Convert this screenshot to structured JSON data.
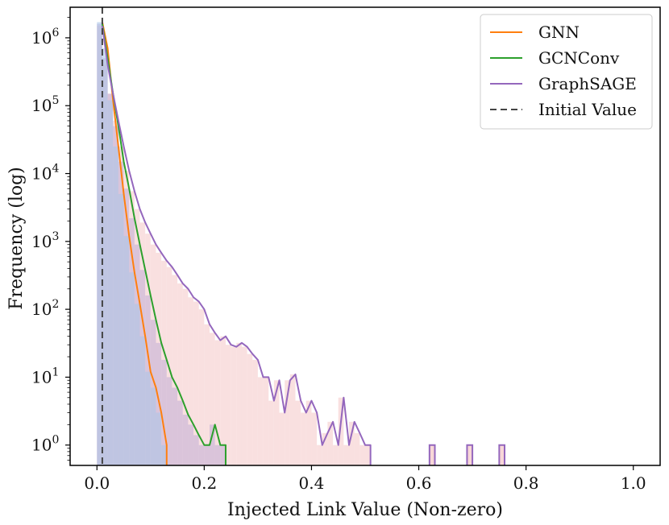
{
  "chart_data": {
    "type": "line",
    "title": "",
    "xlabel": "Injected Link Value (Non-zero)",
    "ylabel": "Frequency (log)",
    "xlim": [
      -0.05,
      1.05
    ],
    "ylim_log10": [
      -0.3,
      6.45
    ],
    "y_scale": "log",
    "x_ticks": [
      0.0,
      0.2,
      0.4,
      0.6,
      0.8,
      1.0
    ],
    "x_tick_labels": [
      "0.0",
      "0.2",
      "0.4",
      "0.6",
      "0.8",
      "1.0"
    ],
    "y_ticks_log10": [
      0,
      1,
      2,
      3,
      4,
      5,
      6
    ],
    "y_tick_base": "10",
    "y_tick_exponents": [
      "0",
      "1",
      "2",
      "3",
      "4",
      "5",
      "6"
    ],
    "grid": false,
    "legend_position": "top-right",
    "reference_line": {
      "name": "Initial Value",
      "x": 0.01,
      "color": "#444444",
      "style": "dashed"
    },
    "series": [
      {
        "name": "GNN",
        "color": "#ff7f0e",
        "fill": "#aec7e8",
        "points": [
          [
            0.01,
            1700000
          ],
          [
            0.02,
            700000
          ],
          [
            0.03,
            120000
          ],
          [
            0.04,
            25000
          ],
          [
            0.05,
            5000
          ],
          [
            0.06,
            1200
          ],
          [
            0.07,
            350
          ],
          [
            0.08,
            120
          ],
          [
            0.09,
            40
          ],
          [
            0.1,
            12
          ],
          [
            0.11,
            7
          ],
          [
            0.12,
            3
          ],
          [
            0.13,
            1
          ]
        ]
      },
      {
        "name": "GCNConv",
        "color": "#2ca02c",
        "fill": "#c5b0d5",
        "points": [
          [
            0.01,
            1600000
          ],
          [
            0.02,
            500000
          ],
          [
            0.03,
            150000
          ],
          [
            0.04,
            50000
          ],
          [
            0.05,
            15000
          ],
          [
            0.06,
            6000
          ],
          [
            0.07,
            2200
          ],
          [
            0.08,
            900
          ],
          [
            0.09,
            380
          ],
          [
            0.1,
            160
          ],
          [
            0.11,
            70
          ],
          [
            0.12,
            32
          ],
          [
            0.13,
            18
          ],
          [
            0.14,
            10
          ],
          [
            0.15,
            7
          ],
          [
            0.16,
            4.5
          ],
          [
            0.17,
            2.8
          ],
          [
            0.18,
            2
          ],
          [
            0.19,
            1.4
          ],
          [
            0.2,
            1
          ],
          [
            0.21,
            1
          ],
          [
            0.22,
            2
          ],
          [
            0.23,
            1
          ],
          [
            0.24,
            1
          ]
        ]
      },
      {
        "name": "GraphSAGE",
        "color": "#9467bd",
        "fill": "#f7d3d3",
        "points": [
          [
            0.01,
            1500000
          ],
          [
            0.02,
            400000
          ],
          [
            0.03,
            150000
          ],
          [
            0.04,
            60000
          ],
          [
            0.05,
            25000
          ],
          [
            0.06,
            11000
          ],
          [
            0.07,
            5500
          ],
          [
            0.08,
            3000
          ],
          [
            0.09,
            1900
          ],
          [
            0.1,
            1300
          ],
          [
            0.11,
            900
          ],
          [
            0.12,
            680
          ],
          [
            0.13,
            520
          ],
          [
            0.14,
            420
          ],
          [
            0.15,
            320
          ],
          [
            0.16,
            240
          ],
          [
            0.17,
            200
          ],
          [
            0.18,
            150
          ],
          [
            0.19,
            130
          ],
          [
            0.2,
            100
          ],
          [
            0.21,
            60
          ],
          [
            0.22,
            45
          ],
          [
            0.23,
            35
          ],
          [
            0.24,
            40
          ],
          [
            0.25,
            30
          ],
          [
            0.26,
            28
          ],
          [
            0.27,
            32
          ],
          [
            0.28,
            28
          ],
          [
            0.29,
            22
          ],
          [
            0.3,
            18
          ],
          [
            0.31,
            10
          ],
          [
            0.32,
            10
          ],
          [
            0.33,
            4.5
          ],
          [
            0.34,
            9
          ],
          [
            0.35,
            3
          ],
          [
            0.36,
            9
          ],
          [
            0.37,
            11
          ],
          [
            0.38,
            4.5
          ],
          [
            0.39,
            3
          ],
          [
            0.4,
            4.5
          ],
          [
            0.41,
            3
          ],
          [
            0.42,
            1
          ],
          [
            0.43,
            1.5
          ],
          [
            0.44,
            2.2
          ],
          [
            0.45,
            1
          ],
          [
            0.46,
            5
          ],
          [
            0.47,
            1
          ],
          [
            0.48,
            2.2
          ],
          [
            0.49,
            1.5
          ],
          [
            0.5,
            1
          ],
          [
            0.51,
            1
          ]
        ]
      }
    ],
    "outliers": [
      {
        "series": "GraphSAGE",
        "x": 0.63,
        "y": 1
      },
      {
        "series": "GraphSAGE",
        "x": 0.7,
        "y": 1
      },
      {
        "series": "GraphSAGE",
        "x": 0.76,
        "y": 1
      }
    ]
  }
}
